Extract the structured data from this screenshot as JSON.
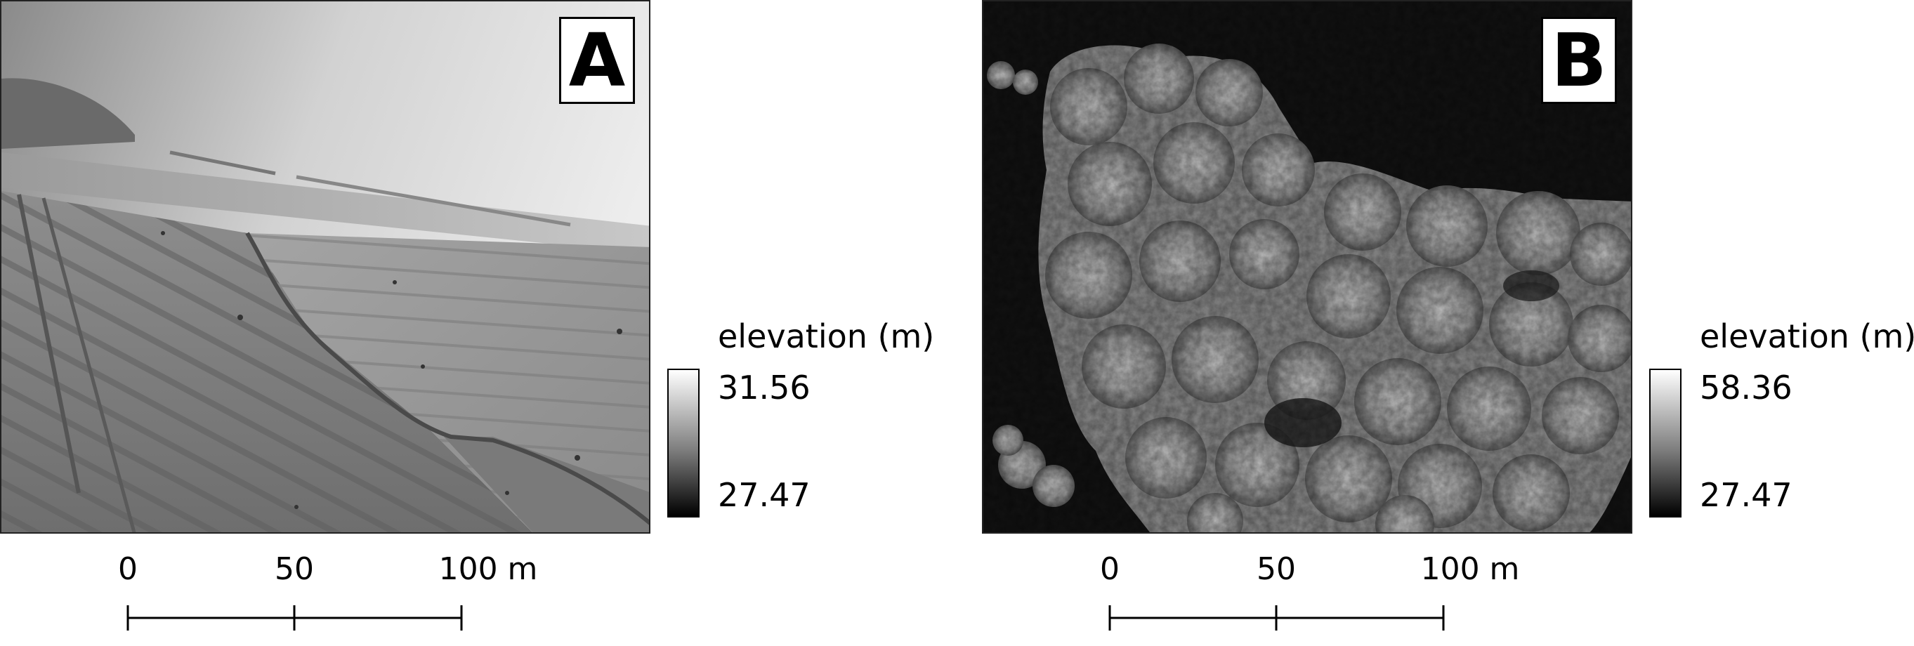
{
  "panels": [
    {
      "letter": "A",
      "legend": {
        "title": "elevation (m)",
        "max": "31.56",
        "min": "27.47"
      },
      "scale_bar": {
        "ticks": [
          "0",
          "50",
          "100 m"
        ]
      }
    },
    {
      "letter": "B",
      "legend": {
        "title": "elevation (m)",
        "max": "58.36",
        "min": "27.47"
      },
      "scale_bar": {
        "ticks": [
          "0",
          "50",
          "100 m"
        ]
      }
    }
  ],
  "colors": {
    "ramp_high": "#ffffff",
    "ramp_low": "#000000"
  }
}
